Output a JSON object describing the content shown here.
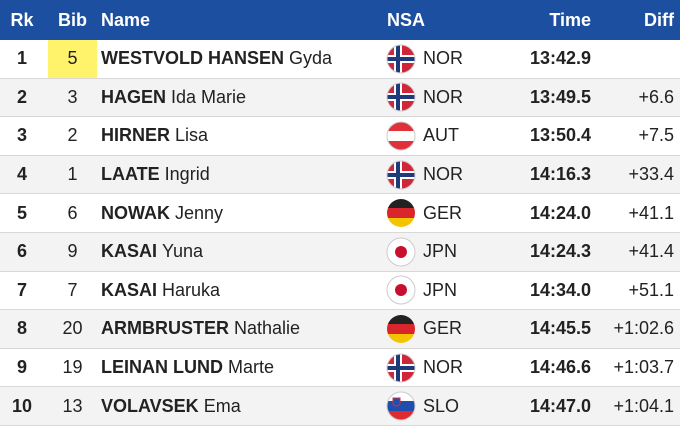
{
  "header": [
    "Rk",
    "Bib",
    "Name",
    "NSA",
    "Time",
    "Diff"
  ],
  "rows": [
    [
      "1",
      "5",
      "WESTVOLD HANSEN",
      "Gyda",
      "NOR",
      "13:42.9"
    ],
    [
      "2",
      "3",
      "HAGEN",
      "Ida Marie",
      "NOR",
      "13:49.5",
      "+6.6"
    ],
    [
      "3",
      "2",
      "HIRNER",
      "Lisa",
      "AUT",
      "13:50.4",
      "+7.5"
    ],
    [
      "4",
      "1",
      "LAATE",
      "Ingrid",
      "NOR",
      "14:16.3",
      "+33.4"
    ],
    [
      "5",
      "6",
      "NOWAK",
      "Jenny",
      "GER",
      "14:24.0",
      "+41.1"
    ],
    [
      "6",
      "9",
      "KASAI",
      "Yuna",
      "JPN",
      "14:24.3",
      "+41.4"
    ],
    [
      "7",
      "7",
      "KASAI",
      "Haruka",
      "JPN",
      "14:34.0",
      "+51.1"
    ],
    [
      "8",
      "20",
      "ARMBRUSTER",
      "Nathalie",
      "GER",
      "14:45.5",
      "+1:02.6"
    ],
    [
      "9",
      "19",
      "LEINAN LUND",
      "Marte",
      "NOR",
      "14:46.6",
      "+1:03.7"
    ],
    [
      "10",
      "13",
      "VOLAVSEK",
      "Ema",
      "SLO",
      "14:47.0",
      "+1:04.1"
    ]
  ]
}
